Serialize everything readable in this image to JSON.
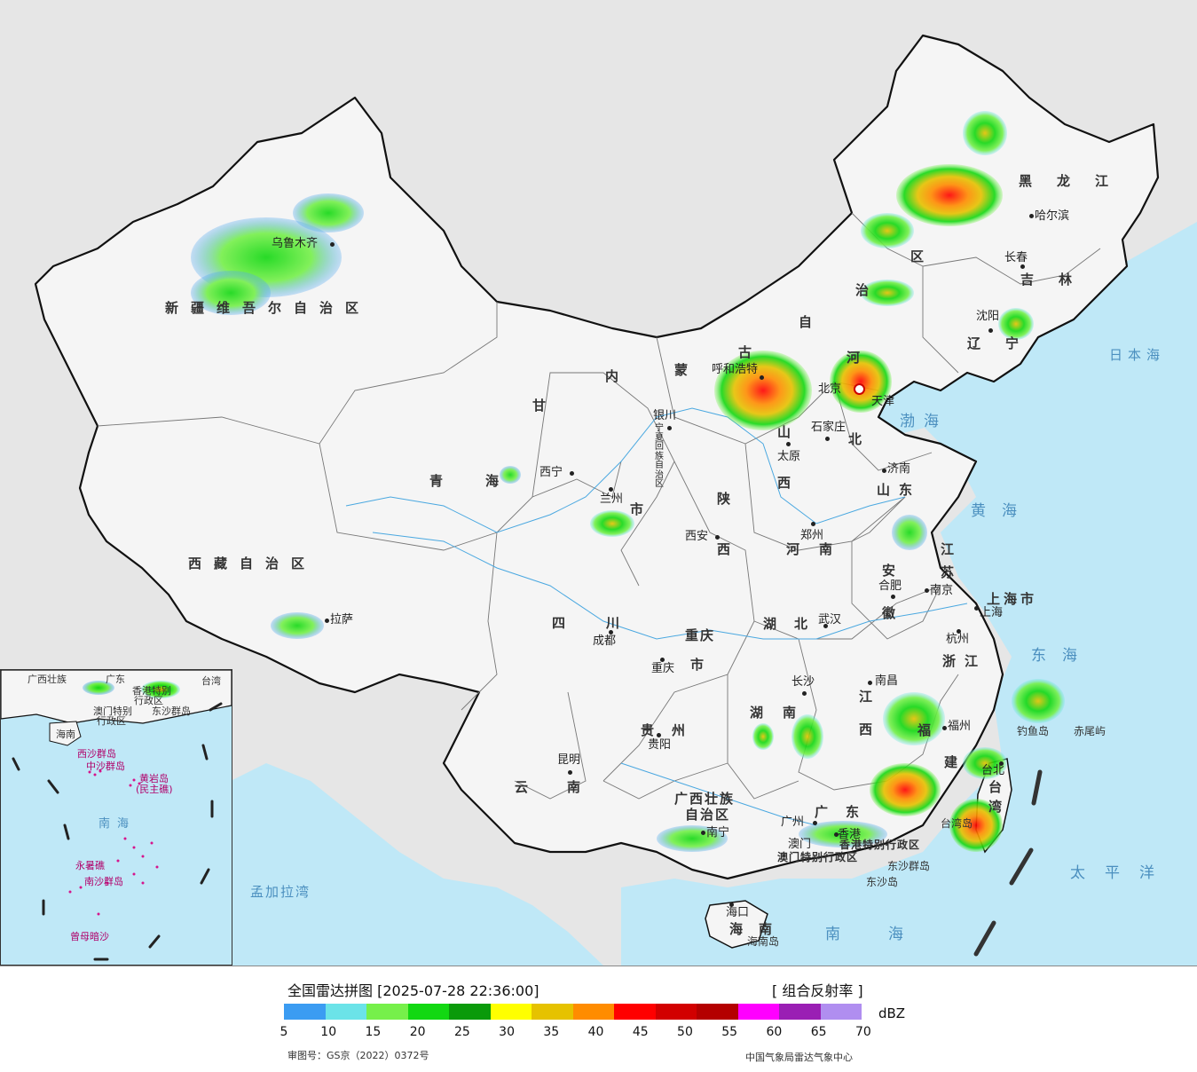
{
  "provinces": {
    "xinjiang": "新疆维吾尔自治区",
    "xizang": "西藏自治区",
    "qinghai": "青海",
    "gansu": "甘",
    "sichuan": "四川",
    "yunnan": "云南",
    "neimenggu_1": "内",
    "neimenggu_2": "蒙",
    "neimenggu_3": "古",
    "neimenggu_4": "自",
    "neimenggu_5": "治",
    "neimenggu_6": "区",
    "heilongjiang": "黑龙江",
    "jilin": "吉林",
    "liaoning": "辽宁",
    "hebei_1": "河",
    "hebei_2": "北",
    "shanxi_1": "山",
    "shanxi_2": "西",
    "shaanxi_1": "陕",
    "shaanxi_2": "西",
    "ningxia": "宁夏回族自治区",
    "shandong": "山东",
    "henan": "河南",
    "jiangsu_1": "江",
    "jiangsu_2": "苏",
    "anhui_1": "安",
    "anhui_2": "徽",
    "hubei": "湖北",
    "hunan": "湖南",
    "jiangxi_1": "江",
    "jiangxi_2": "西",
    "zhejiang": "浙江",
    "fujian_1": "福",
    "fujian_2": "建",
    "guizhou": "贵州",
    "chongqing_1": "重庆",
    "chongqing_2": "市",
    "guangxi_1": "广西壮族",
    "guangxi_2": "自治区",
    "guangdong": "广东",
    "hainan": "海南",
    "taiwan_1": "台",
    "taiwan_2": "湾",
    "shanghai_shi": "上海市",
    "lanzhou_shi": "市",
    "hk_region": "香港特别行政区",
    "macau_region": "澳门特别行政区"
  },
  "cities": {
    "urumqi": "乌鲁木齐",
    "lhasa": "拉萨",
    "xining": "西宁",
    "lanzhou": "兰州",
    "yinchuan": "银川",
    "huhehaote": "呼和浩特",
    "beijing": "北京",
    "tianjin": "天津",
    "shijiazhuang": "石家庄",
    "taiyuan": "太原",
    "xian": "西安",
    "zhengzhou": "郑州",
    "jinan": "济南",
    "nanjing": "南京",
    "hefei": "合肥",
    "shanghai": "上海",
    "hangzhou": "杭州",
    "wuhan": "武汉",
    "changsha": "长沙",
    "nanchang": "南昌",
    "fuzhou": "福州",
    "taibei": "台北",
    "chengdu": "成都",
    "chongqing": "重庆",
    "guiyang": "贵阳",
    "kunming": "昆明",
    "nanning": "南宁",
    "guangzhou": "广州",
    "hongkong": "香港",
    "macau": "澳门",
    "haikou": "海口",
    "harbin": "哈尔滨",
    "changchun": "长春",
    "shenyang": "沈阳",
    "haerbin_extra": ""
  },
  "seas": {
    "bohai": "渤海",
    "huanghai": "黄海",
    "donghai": "东海",
    "nanhai": "南海",
    "taipingyang": "太平洋",
    "ribenhai": "日本海",
    "mengjialawan": "孟加拉湾"
  },
  "islands": {
    "diaoyudao": "钓鱼岛",
    "chiweiyu": "赤尾屿",
    "taiwandao": "台湾岛",
    "hainandao": "海南岛",
    "dongshaqundao": "东沙群岛",
    "dongshadao": "东沙岛"
  },
  "inset": {
    "guangxi": "广西壮族",
    "guangdong": "广东",
    "taiwan": "台湾",
    "hk": "香港特别",
    "hk2": "行政区",
    "macau": "澳门特别",
    "macau2": "行政区",
    "dongsha": "东沙群岛",
    "hainan": "海南",
    "xisha": "西沙群岛",
    "zhongsha": "中沙群岛",
    "huangyan": "黄岩岛",
    "huangyan2": "(民主礁)",
    "nanhai": "南海",
    "yongshu": "永暑礁",
    "nansha": "南沙群岛",
    "zengmu": "曾母暗沙"
  },
  "legend": {
    "title": "全国雷达拼图 [2025-07-28 22:36:00]",
    "product": "[ 组合反射率 ]",
    "unit": "dBZ",
    "ticks": [
      "5",
      "10",
      "15",
      "20",
      "25",
      "30",
      "35",
      "40",
      "45",
      "50",
      "55",
      "60",
      "65",
      "70"
    ],
    "colors": [
      "#3b9cf2",
      "#6be3e8",
      "#76f04a",
      "#12d812",
      "#0a9a0a",
      "#ffff00",
      "#e6c200",
      "#ff8c00",
      "#ff0000",
      "#d20000",
      "#b40000",
      "#ff00ff",
      "#9a1fb4",
      "#b08ef0"
    ],
    "audit_no": "审图号：GS京（2022）0372号",
    "source": "中国气象局雷达气象中心"
  },
  "colors": {
    "sea": "#bfe8f7",
    "land_china": "#f4f4f4",
    "land_other": "#e6e6e6",
    "border": "#111111"
  }
}
